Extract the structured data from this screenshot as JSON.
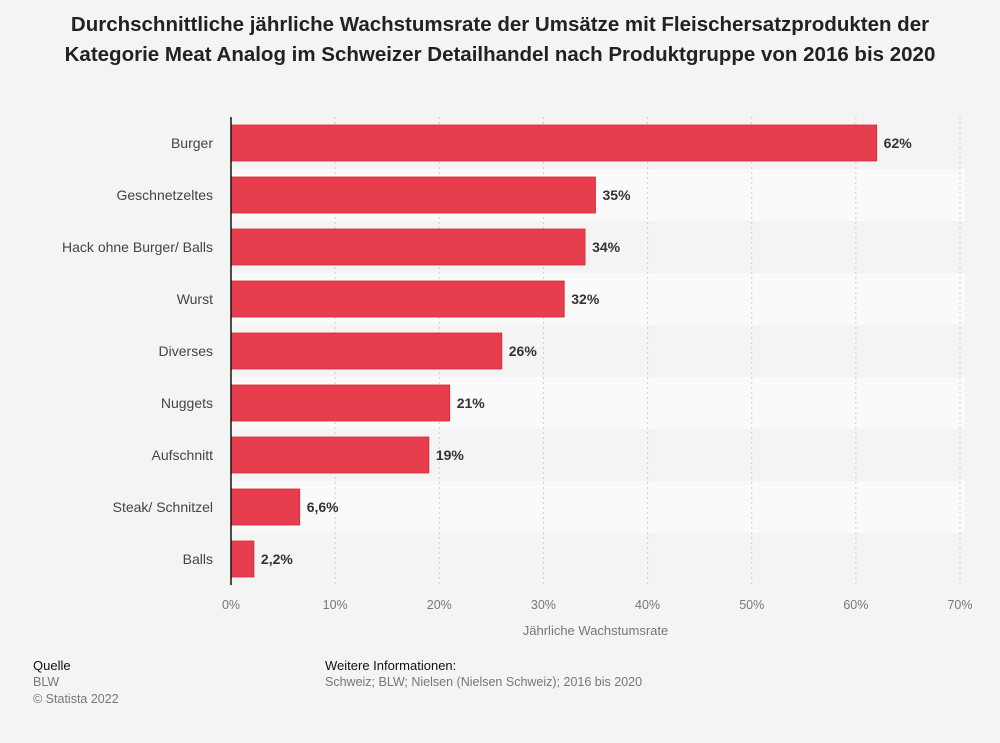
{
  "chart_data": {
    "type": "bar",
    "orientation": "horizontal",
    "title": "Durchschnittliche jährliche Wachstumsrate der Umsätze mit Fleischersatzprodukten der Kategorie Meat Analog im Schweizer Detailhandel nach Produktgruppe von 2016 bis 2020",
    "categories": [
      "Burger",
      "Geschnetzeltes",
      "Hack ohne Burger/ Balls",
      "Wurst",
      "Diverses",
      "Nuggets",
      "Aufschnitt",
      "Steak/ Schnitzel",
      "Balls"
    ],
    "values": [
      62,
      35,
      34,
      32,
      26,
      21,
      19,
      6.6,
      2.2
    ],
    "data_labels": [
      "62%",
      "35%",
      "34%",
      "32%",
      "26%",
      "21%",
      "19%",
      "6,6%",
      "2,2%"
    ],
    "xlabel": "Jährliche Wachstumsrate",
    "xlim": [
      0,
      70
    ],
    "xticks": [
      0,
      10,
      20,
      30,
      40,
      50,
      60,
      70
    ],
    "xtick_labels": [
      "0%",
      "10%",
      "20%",
      "30%",
      "40%",
      "50%",
      "60%",
      "70%"
    ],
    "grid": true,
    "bar_color": "#e63e4d"
  },
  "footer": {
    "source_heading": "Quelle",
    "source": "BLW",
    "copyright": "© Statista 2022",
    "info_heading": "Weitere Informationen:",
    "info": "Schweiz; BLW; Nielsen (Nielsen Schweiz); 2016 bis 2020"
  }
}
